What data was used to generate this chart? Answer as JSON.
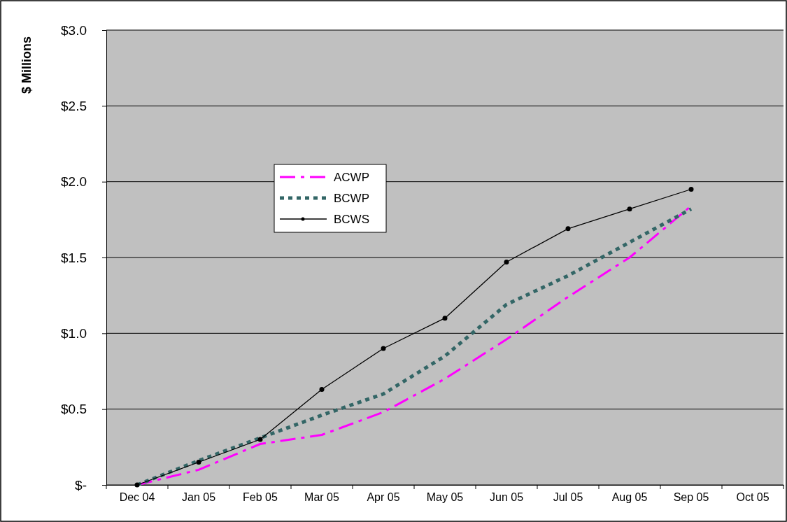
{
  "chart_data": {
    "type": "line",
    "ylabel": "$ Millions",
    "categories": [
      "Dec 04",
      "Jan 05",
      "Feb 05",
      "Mar 05",
      "Apr 05",
      "May 05",
      "Jun 05",
      "Jul 05",
      "Aug 05",
      "Sep 05",
      "Oct 05"
    ],
    "series": [
      {
        "name": "ACWP",
        "color": "#ff00ff",
        "line_style": "dashed",
        "marker": "none",
        "values": [
          0,
          0.1,
          0.27,
          0.33,
          0.48,
          0.7,
          0.96,
          1.24,
          1.5,
          1.84,
          null
        ]
      },
      {
        "name": "BCWP",
        "color": "#336666",
        "line_style": "dotted",
        "marker": "none",
        "values": [
          0,
          0.16,
          0.31,
          0.46,
          0.6,
          0.85,
          1.19,
          1.38,
          1.6,
          1.82,
          null
        ]
      },
      {
        "name": "BCWS",
        "color": "#000000",
        "line_style": "solid",
        "marker": "circle",
        "values": [
          0,
          0.15,
          0.3,
          0.63,
          0.9,
          1.1,
          1.47,
          1.69,
          1.82,
          1.95,
          null
        ]
      }
    ],
    "ylim": [
      0,
      3
    ],
    "yticks": [
      {
        "value": 0,
        "label": "$-"
      },
      {
        "value": 0.5,
        "label": "$0.5"
      },
      {
        "value": 1,
        "label": "$1.0"
      },
      {
        "value": 1.5,
        "label": "$1.5"
      },
      {
        "value": 2,
        "label": "$2.0"
      },
      {
        "value": 2.5,
        "label": "$2.5"
      },
      {
        "value": 3,
        "label": "$3.0"
      }
    ],
    "grid": "y",
    "legend": "top left"
  }
}
